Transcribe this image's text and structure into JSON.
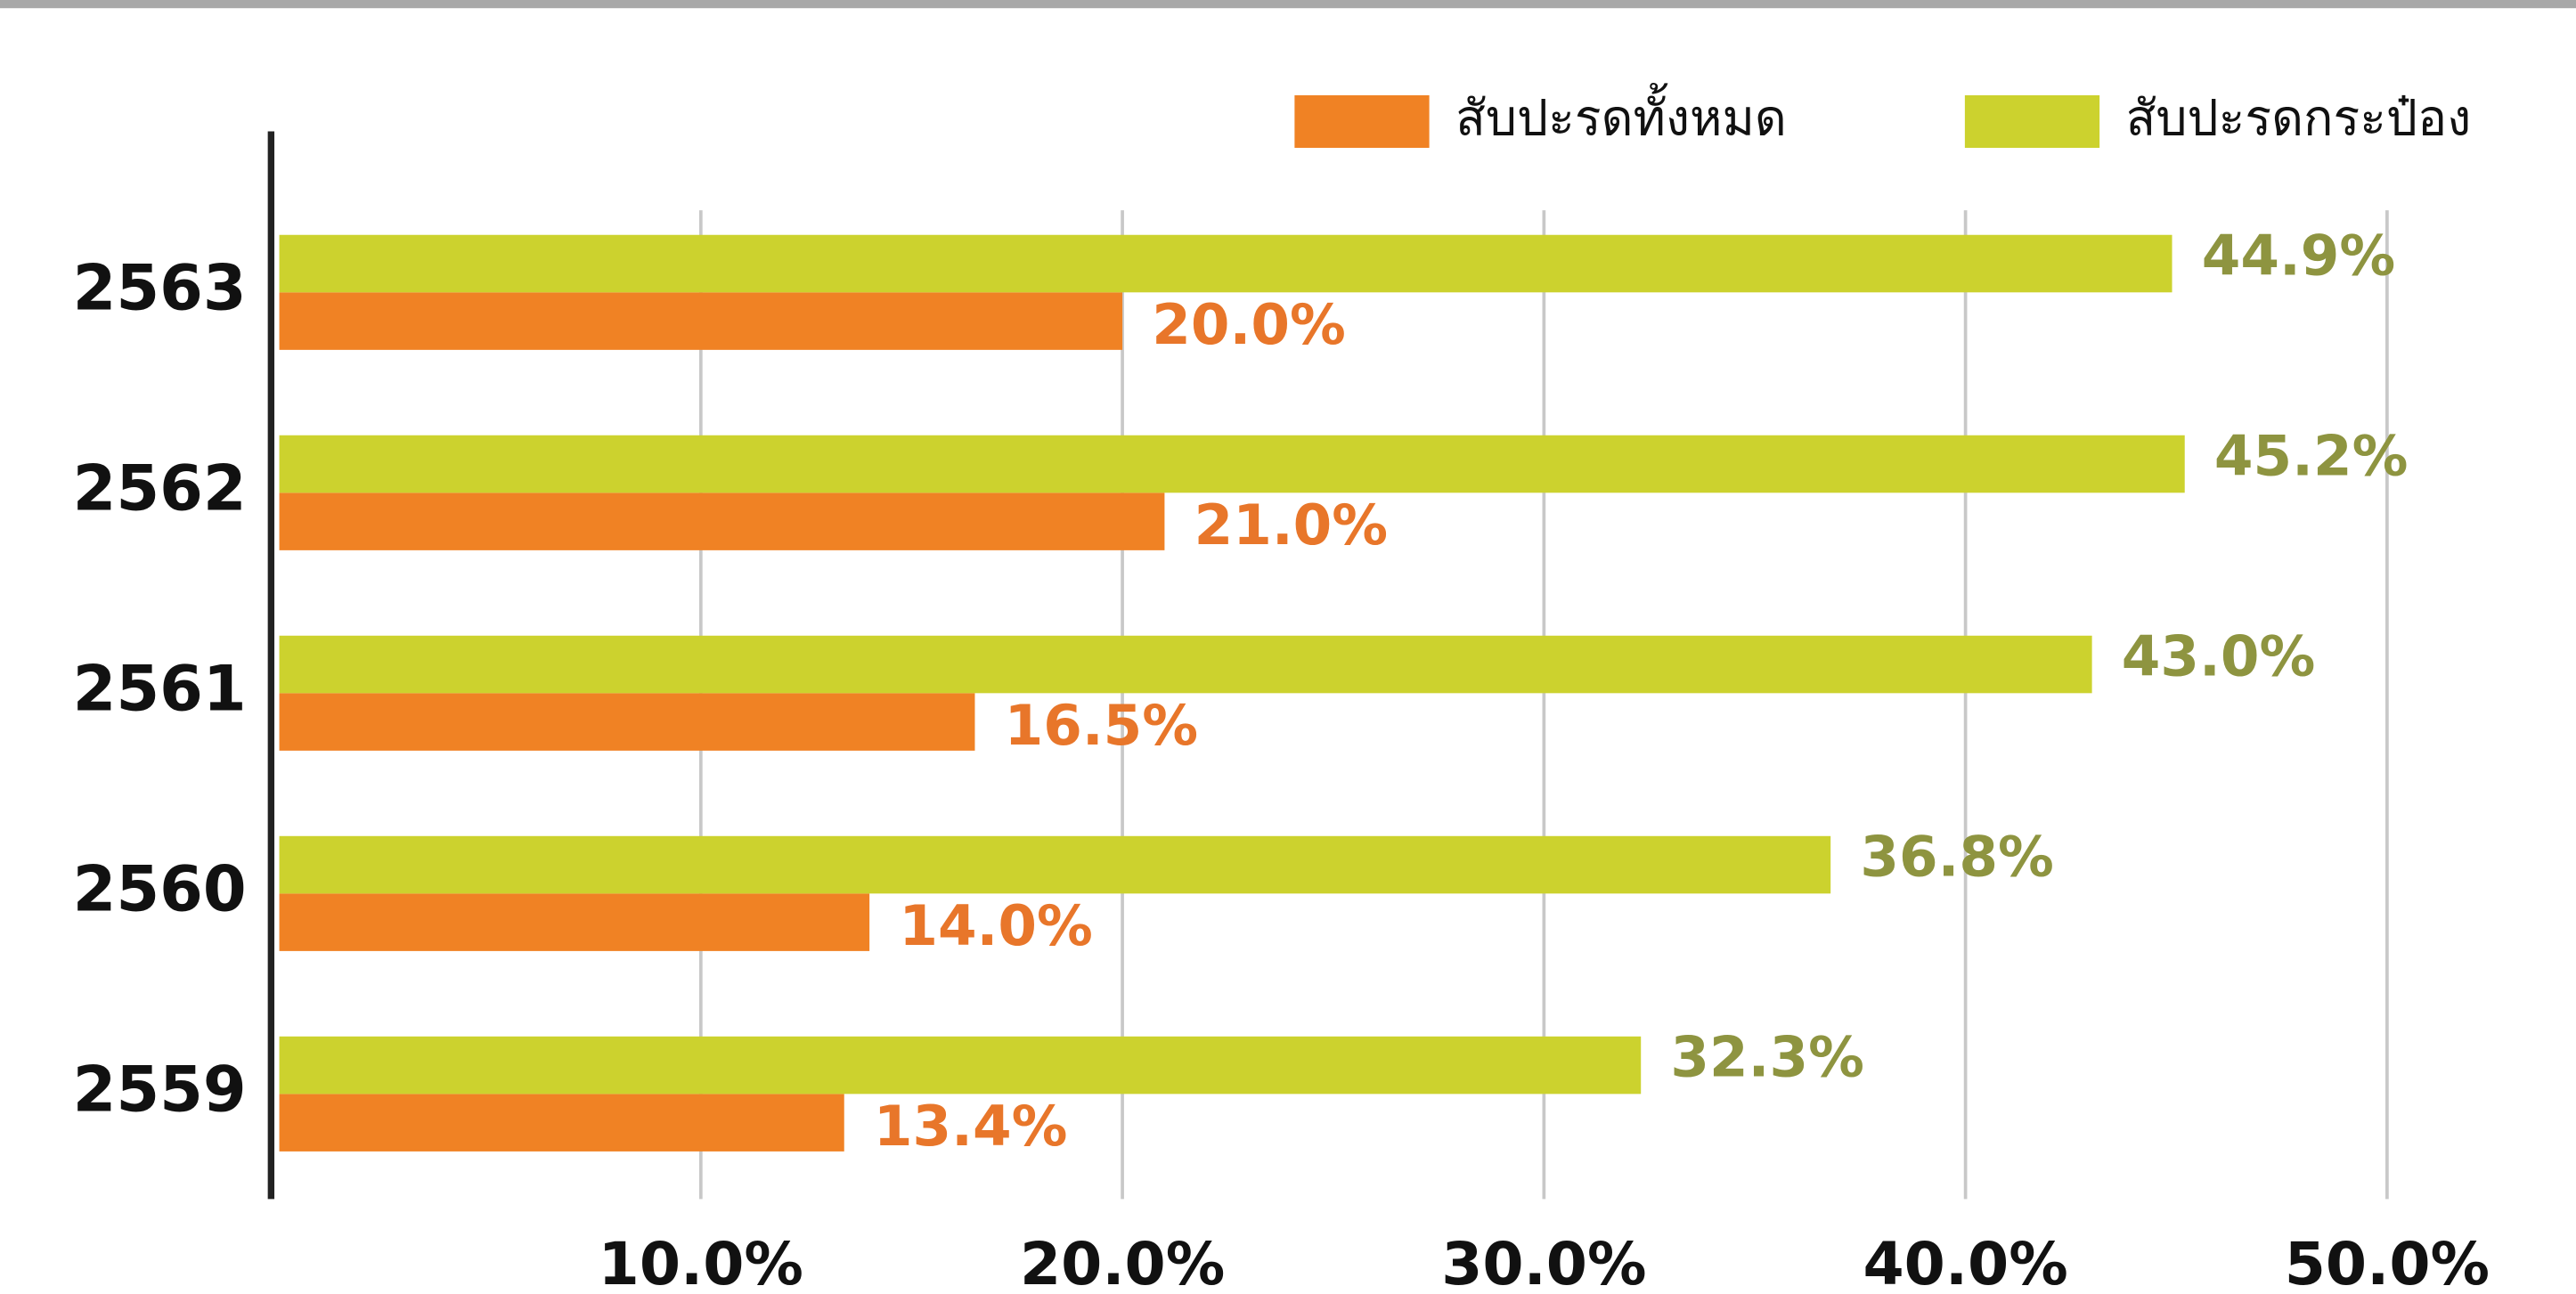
{
  "chart_data": {
    "type": "bar",
    "orientation": "horizontal",
    "categories": [
      "2563",
      "2562",
      "2561",
      "2560",
      "2559"
    ],
    "series": [
      {
        "name": "สับปะรดทั้งหมด",
        "color": "#f08224",
        "values": [
          20.0,
          21.0,
          16.5,
          14.0,
          13.4
        ],
        "value_labels": [
          "20.0%",
          "21.0%",
          "16.5%",
          "14.0%",
          "13.4%"
        ]
      },
      {
        "name": "สับปะรดกระป๋อง",
        "color": "#ccd22e",
        "values": [
          44.9,
          45.2,
          43.0,
          36.8,
          32.3
        ],
        "value_labels": [
          "44.9%",
          "45.2%",
          "43.0%",
          "36.8%",
          "32.3%"
        ]
      }
    ],
    "xlim": [
      0,
      50
    ],
    "xticks": [
      {
        "value": 10,
        "label": "10.0%"
      },
      {
        "value": 20,
        "label": "20.0%"
      },
      {
        "value": 30,
        "label": "30.0%"
      },
      {
        "value": 40,
        "label": "40.0%"
      },
      {
        "value": 50,
        "label": "50.0%"
      }
    ],
    "grid": true,
    "legend": "top-right"
  }
}
